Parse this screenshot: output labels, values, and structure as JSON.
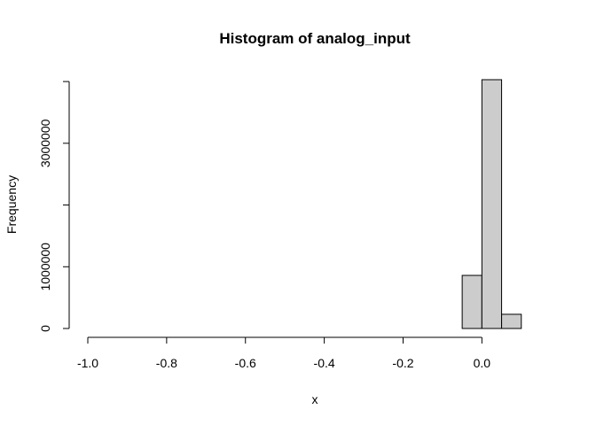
{
  "chart_data": {
    "type": "bar",
    "title": "Histogram of analog_input",
    "xlabel": "x",
    "ylabel": "Frequency",
    "bin_width": 0.05,
    "bins": [
      {
        "from": -1.0,
        "to": -0.95,
        "value": 0
      },
      {
        "from": -0.95,
        "to": -0.9,
        "value": 0
      },
      {
        "from": -0.9,
        "to": -0.85,
        "value": 0
      },
      {
        "from": -0.85,
        "to": -0.8,
        "value": 0
      },
      {
        "from": -0.8,
        "to": -0.75,
        "value": 0
      },
      {
        "from": -0.75,
        "to": -0.7,
        "value": 0
      },
      {
        "from": -0.7,
        "to": -0.65,
        "value": 0
      },
      {
        "from": -0.65,
        "to": -0.6,
        "value": 0
      },
      {
        "from": -0.6,
        "to": -0.55,
        "value": 0
      },
      {
        "from": -0.55,
        "to": -0.5,
        "value": 0
      },
      {
        "from": -0.5,
        "to": -0.45,
        "value": 0
      },
      {
        "from": -0.45,
        "to": -0.4,
        "value": 0
      },
      {
        "from": -0.4,
        "to": -0.35,
        "value": 0
      },
      {
        "from": -0.35,
        "to": -0.3,
        "value": 0
      },
      {
        "from": -0.3,
        "to": -0.25,
        "value": 0
      },
      {
        "from": -0.25,
        "to": -0.2,
        "value": 0
      },
      {
        "from": -0.2,
        "to": -0.15,
        "value": 0
      },
      {
        "from": -0.15,
        "to": -0.1,
        "value": 0
      },
      {
        "from": -0.1,
        "to": -0.05,
        "value": 0
      },
      {
        "from": -0.05,
        "to": 0.0,
        "value": 860000
      },
      {
        "from": 0.0,
        "to": 0.05,
        "value": 4030000
      },
      {
        "from": 0.05,
        "to": 0.1,
        "value": 230000
      }
    ],
    "xticks": [
      -1.0,
      -0.8,
      -0.6,
      -0.4,
      -0.2,
      0.0
    ],
    "xtick_labels": [
      "-1.0",
      "-0.8",
      "-0.6",
      "-0.4",
      "-0.2",
      "0.0"
    ],
    "yticks": [
      0,
      1000000,
      2000000,
      3000000,
      4000000
    ],
    "ytick_labels": [
      "0",
      "1000000",
      "",
      "3000000",
      ""
    ],
    "xlim": [
      -1.0,
      0.15
    ],
    "ylim": [
      0,
      4030000
    ],
    "bar_fill": "#cccccc",
    "bar_stroke": "#000000",
    "grid": false
  }
}
